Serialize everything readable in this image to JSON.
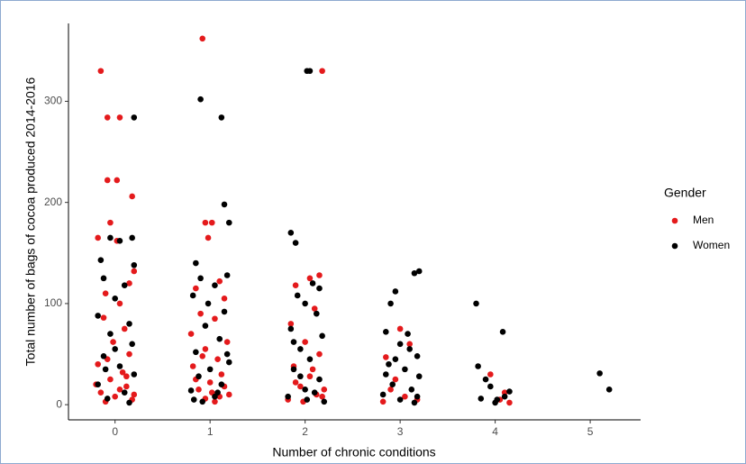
{
  "chart_data": {
    "type": "scatter",
    "x_label": "Number of chronic conditions",
    "y_label": "Total number of bags of cocoa produced 2014-2016",
    "legend_title": "Gender",
    "legend": "right",
    "xlim": [
      -0.49,
      5.53
    ],
    "ylim": [
      -15,
      377
    ],
    "xticks": [
      0,
      1,
      2,
      3,
      4,
      5
    ],
    "yticks": [
      0,
      100,
      200,
      300
    ],
    "series": [
      {
        "name": "Men",
        "color": "#e41a1c",
        "x": [
          -0.15,
          -0.08,
          0.05,
          -0.08,
          0.02,
          0.18,
          -0.05,
          -0.18,
          0.02,
          0.2,
          0.15,
          -0.1,
          0.05,
          -0.12,
          0.1,
          -0.02,
          0.15,
          -0.18,
          0.08,
          -0.05,
          0.12,
          -0.15,
          0.0,
          0.18,
          -0.1,
          0.05,
          -0.2,
          0.2,
          -0.08,
          0.12,
          0.92,
          0.95,
          1.02,
          0.98,
          1.1,
          0.85,
          1.15,
          0.9,
          1.05,
          0.8,
          1.18,
          0.95,
          1.08,
          0.82,
          1.12,
          1.0,
          0.88,
          1.2,
          0.95,
          1.05,
          1.15,
          0.85,
          1.02,
          0.92,
          1.1,
          2.18,
          2.15,
          2.05,
          1.9,
          2.1,
          1.85,
          2.0,
          2.15,
          1.88,
          2.05,
          1.95,
          2.12,
          1.82,
          2.2,
          1.98,
          2.08,
          1.9,
          2.18,
          2.85,
          3.0,
          3.1,
          2.9,
          3.05,
          3.18,
          2.82,
          2.95,
          3.95,
          4.1,
          4.05,
          4.15
        ],
        "values": [
          330,
          284,
          284,
          222,
          222,
          206,
          180,
          165,
          162,
          132,
          120,
          110,
          100,
          86,
          75,
          62,
          50,
          40,
          32,
          25,
          18,
          12,
          8,
          5,
          3,
          15,
          20,
          10,
          45,
          28,
          362,
          180,
          180,
          165,
          122,
          115,
          105,
          90,
          85,
          70,
          62,
          55,
          45,
          38,
          30,
          22,
          15,
          10,
          6,
          3,
          18,
          25,
          12,
          48,
          8,
          330,
          128,
          125,
          118,
          95,
          80,
          62,
          50,
          38,
          28,
          18,
          10,
          5,
          15,
          3,
          35,
          22,
          8,
          47,
          75,
          60,
          15,
          8,
          5,
          3,
          25,
          30,
          12,
          5,
          2
        ]
      },
      {
        "name": "Women",
        "color": "#000000",
        "x": [
          0.2,
          -0.05,
          0.05,
          0.18,
          -0.15,
          0.2,
          -0.12,
          0.1,
          0.0,
          -0.18,
          0.15,
          -0.05,
          0.18,
          -0.12,
          0.05,
          0.2,
          -0.18,
          0.1,
          -0.08,
          0.15,
          0.0,
          -0.1,
          0.9,
          1.12,
          1.15,
          1.2,
          0.85,
          1.18,
          0.9,
          1.05,
          0.82,
          1.15,
          0.95,
          1.1,
          0.85,
          1.2,
          1.0,
          0.88,
          1.12,
          0.8,
          1.05,
          0.92,
          1.18,
          0.98,
          1.08,
          0.83,
          1.85,
          1.9,
          2.02,
          2.05,
          2.08,
          2.15,
          1.92,
          2.0,
          2.12,
          1.85,
          2.18,
          1.95,
          2.05,
          1.88,
          2.15,
          2.0,
          1.82,
          2.2,
          1.95,
          2.1,
          1.88,
          2.02,
          3.15,
          3.2,
          2.95,
          2.9,
          2.85,
          3.0,
          3.1,
          3.18,
          2.88,
          3.05,
          3.2,
          2.92,
          3.12,
          2.82,
          3.0,
          3.15,
          3.08,
          2.95,
          3.18,
          2.85,
          3.8,
          4.08,
          3.82,
          3.9,
          4.15,
          4.02,
          4.0,
          3.95,
          4.1,
          3.85,
          5.1,
          5.2
        ],
        "values": [
          284,
          165,
          162,
          165,
          143,
          138,
          125,
          118,
          105,
          88,
          80,
          70,
          60,
          48,
          38,
          30,
          20,
          12,
          6,
          2,
          55,
          35,
          302,
          284,
          198,
          180,
          140,
          128,
          125,
          118,
          108,
          92,
          78,
          65,
          52,
          42,
          35,
          28,
          20,
          14,
          8,
          3,
          50,
          100,
          12,
          5,
          170,
          160,
          330,
          330,
          120,
          115,
          108,
          100,
          90,
          75,
          68,
          55,
          45,
          35,
          25,
          15,
          8,
          3,
          28,
          12,
          62,
          5,
          130,
          132,
          112,
          100,
          72,
          60,
          55,
          48,
          40,
          35,
          28,
          20,
          15,
          10,
          5,
          2,
          70,
          45,
          8,
          30,
          100,
          72,
          38,
          25,
          13,
          5,
          2,
          18,
          8,
          6,
          31,
          15
        ]
      }
    ]
  }
}
